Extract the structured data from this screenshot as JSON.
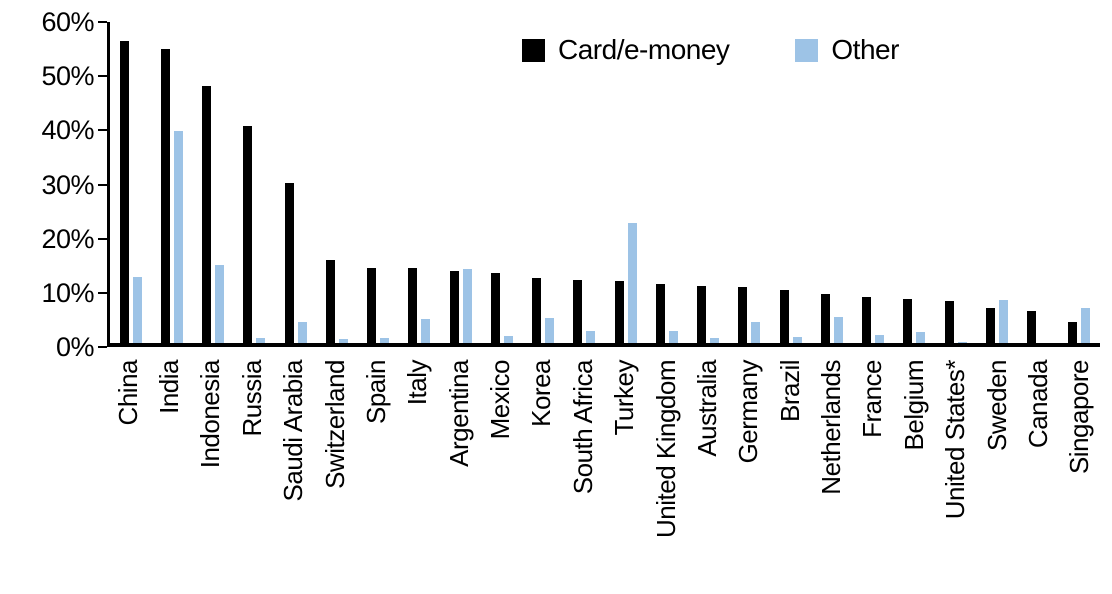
{
  "chart_data": {
    "type": "bar",
    "title": "",
    "xlabel": "",
    "ylabel": "",
    "ylim": [
      0,
      60
    ],
    "yticks": [
      "0%",
      "10%",
      "20%",
      "30%",
      "40%",
      "50%",
      "60%"
    ],
    "grid": false,
    "legend_position": "top-center",
    "categories": [
      "China",
      "India",
      "Indonesia",
      "Russia",
      "Saudi Arabia",
      "Switzerland",
      "Spain",
      "Italy",
      "Argentina",
      "Mexico",
      "Korea",
      "South Africa",
      "Turkey",
      "United Kingdom",
      "Australia",
      "Germany",
      "Brazil",
      "Netherlands",
      "France",
      "Belgium",
      "United States*",
      "Sweden",
      "Canada",
      "Singapore"
    ],
    "series": [
      {
        "name": "Card/e-money",
        "color": "#000000",
        "values": [
          56.5,
          55.0,
          48.0,
          40.5,
          30.0,
          15.5,
          14.0,
          14.0,
          13.5,
          13.0,
          12.2,
          11.7,
          11.6,
          11.0,
          10.7,
          10.5,
          10.0,
          9.2,
          8.6,
          8.2,
          7.9,
          6.5,
          5.9,
          3.9
        ]
      },
      {
        "name": "Other",
        "color": "#9DC3E6",
        "values": [
          12.3,
          39.7,
          14.5,
          1.0,
          4.0,
          0.8,
          1.0,
          4.5,
          13.9,
          1.3,
          4.7,
          2.3,
          22.5,
          2.2,
          1.0,
          4.0,
          1.2,
          4.8,
          1.5,
          2.0,
          0.2,
          8.0,
          0.0,
          6.6
        ]
      }
    ]
  }
}
